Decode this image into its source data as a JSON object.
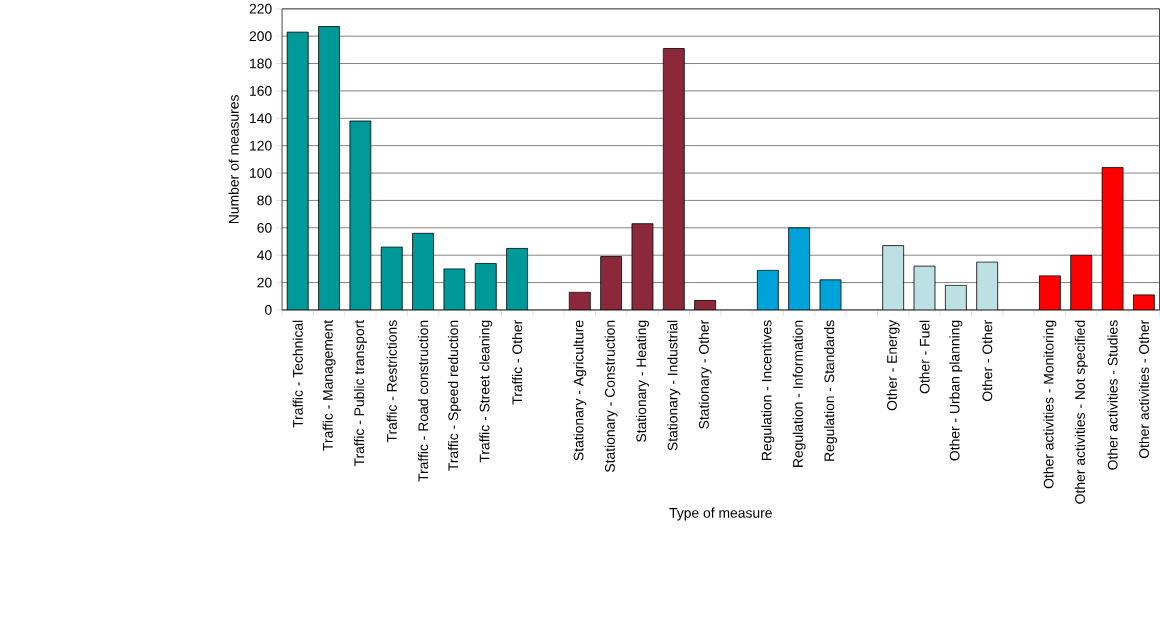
{
  "chart_data": {
    "type": "bar",
    "xlabel": "Type of measure",
    "ylabel": "Number of measures",
    "categories": [
      "Traffic - Technical",
      "Traffic - Management",
      "Traffic - Public transport",
      "Traffic - Restrictions",
      "Traffic - Road construction",
      "Traffic - Speed reduction",
      "Traffic - Street cleaning",
      "Traffic - Other",
      null,
      "Stationary - Agriculture",
      "Stationary - Construction",
      "Stationary - Heating",
      "Stationary - Industrial",
      "Stationary - Other",
      null,
      "Regulation - Incentives",
      "Regulation - Information",
      "Regulation - Standards",
      null,
      "Other - Energy",
      "Other - Fuel",
      "Other - Urban planning",
      "Other - Other",
      null,
      "Other activities - Monitoring",
      "Other activities - Not specified",
      "Other activities - Studies",
      "Other activities - Other"
    ],
    "values": [
      203,
      207,
      138,
      46,
      56,
      30,
      34,
      45,
      null,
      13,
      39,
      63,
      191,
      7,
      null,
      29,
      60,
      22,
      null,
      47,
      32,
      18,
      35,
      null,
      25,
      40,
      104,
      11
    ],
    "colors": [
      "#009999",
      "#009999",
      "#009999",
      "#009999",
      "#009999",
      "#009999",
      "#009999",
      "#009999",
      null,
      "#8b2839",
      "#8b2839",
      "#8b2839",
      "#8b2839",
      "#8b2839",
      null,
      "#00a3d9",
      "#00a3d9",
      "#00a3d9",
      null,
      "#bde0e3",
      "#bde0e3",
      "#bde0e3",
      "#bde0e3",
      null,
      "#ff0000",
      "#ff0000",
      "#ff0000",
      "#ff0000"
    ],
    "ylim": [
      0,
      220
    ],
    "yticks": [
      0,
      20,
      40,
      60,
      80,
      100,
      120,
      140,
      160,
      180,
      200,
      220
    ],
    "grid": "y"
  }
}
